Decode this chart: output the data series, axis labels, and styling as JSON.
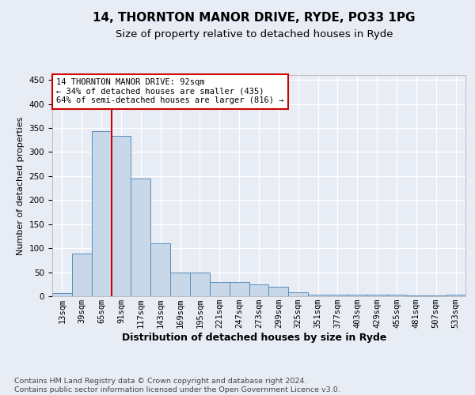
{
  "title1": "14, THORNTON MANOR DRIVE, RYDE, PO33 1PG",
  "title2": "Size of property relative to detached houses in Ryde",
  "xlabel": "Distribution of detached houses by size in Ryde",
  "ylabel": "Number of detached properties",
  "categories": [
    "13sqm",
    "39sqm",
    "65sqm",
    "91sqm",
    "117sqm",
    "143sqm",
    "169sqm",
    "195sqm",
    "221sqm",
    "247sqm",
    "273sqm",
    "299sqm",
    "325sqm",
    "351sqm",
    "377sqm",
    "403sqm",
    "429sqm",
    "455sqm",
    "481sqm",
    "507sqm",
    "533sqm"
  ],
  "values": [
    6,
    88,
    343,
    333,
    245,
    110,
    49,
    49,
    30,
    30,
    25,
    20,
    8,
    4,
    4,
    4,
    4,
    4,
    1,
    1,
    4
  ],
  "bar_color": "#c8d8e8",
  "bar_edge_color": "#5b8db8",
  "vline_x_idx": 3,
  "vline_color": "#cc0000",
  "annotation_text": "14 THORNTON MANOR DRIVE: 92sqm\n← 34% of detached houses are smaller (435)\n64% of semi-detached houses are larger (816) →",
  "annotation_box_color": "#ffffff",
  "annotation_box_edge": "#cc0000",
  "footer": "Contains HM Land Registry data © Crown copyright and database right 2024.\nContains public sector information licensed under the Open Government Licence v3.0.",
  "ylim": [
    0,
    460
  ],
  "yticks": [
    0,
    50,
    100,
    150,
    200,
    250,
    300,
    350,
    400,
    450
  ],
  "background_color": "#e8edf5",
  "plot_bg_color": "#e8edf5",
  "grid_color": "#ffffff",
  "title1_fontsize": 11,
  "title2_fontsize": 9.5,
  "xlabel_fontsize": 9,
  "ylabel_fontsize": 8,
  "footer_fontsize": 6.8,
  "tick_fontsize": 7.5
}
